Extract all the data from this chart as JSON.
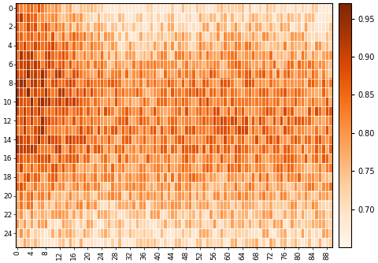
{
  "nrows": 26,
  "ncols": 90,
  "vmin": 0.65,
  "vmax": 0.97,
  "ytick_step": 2,
  "xtick_step": 4,
  "cbar_ticks": [
    0.7,
    0.75,
    0.8,
    0.85,
    0.9,
    0.95
  ],
  "colormap": "Oranges",
  "figsize": [
    4.8,
    3.34
  ],
  "dpi": 100,
  "background_color": "#ffffff",
  "seed": 123
}
